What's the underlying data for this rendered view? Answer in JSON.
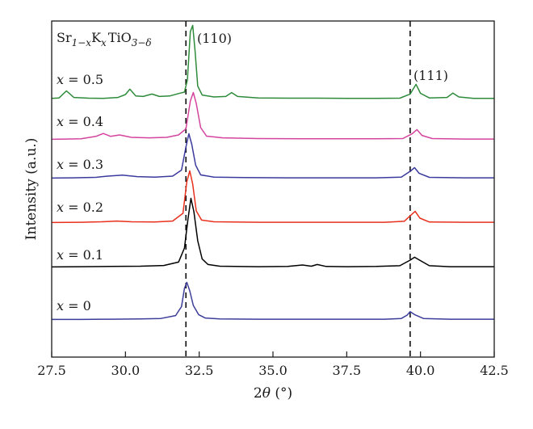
{
  "chart_data": {
    "type": "line",
    "xlabel": "2θ (°)",
    "ylabel": "Intensity (a.u.)",
    "xlim": [
      27.5,
      42.5
    ],
    "x_ticks": [
      "27.5",
      "30.0",
      "32.5",
      "35.0",
      "37.5",
      "40.0",
      "42.5"
    ],
    "grid": false,
    "title_annotation": {
      "base": "Sr",
      "sub1": "1−x",
      "mid": "K",
      "sub2": "x",
      "after": "TiO",
      "sub3": "3−δ"
    },
    "reference_lines": [
      {
        "x": 32.05,
        "label": "(110)"
      },
      {
        "x": 39.65,
        "label": "(111)"
      }
    ],
    "peaks": {
      "hkl110": "(110)",
      "hkl111": "(111)"
    },
    "series": [
      {
        "name": "x = 0.5",
        "color": "#2e8b3a",
        "points": [
          [
            27.5,
            0.04
          ],
          [
            27.75,
            0.06
          ],
          [
            28.0,
            0.35
          ],
          [
            28.25,
            0.08
          ],
          [
            28.75,
            0.05
          ],
          [
            29.25,
            0.04
          ],
          [
            29.75,
            0.08
          ],
          [
            30.0,
            0.2
          ],
          [
            30.15,
            0.42
          ],
          [
            30.35,
            0.14
          ],
          [
            30.6,
            0.12
          ],
          [
            30.9,
            0.22
          ],
          [
            31.15,
            0.12
          ],
          [
            31.5,
            0.14
          ],
          [
            31.8,
            0.24
          ],
          [
            32.0,
            0.3
          ],
          [
            32.1,
            0.8
          ],
          [
            32.2,
            2.8
          ],
          [
            32.28,
            3.05
          ],
          [
            32.36,
            2.0
          ],
          [
            32.45,
            0.55
          ],
          [
            32.6,
            0.18
          ],
          [
            33.0,
            0.1
          ],
          [
            33.4,
            0.12
          ],
          [
            33.6,
            0.28
          ],
          [
            33.8,
            0.12
          ],
          [
            34.5,
            0.06
          ],
          [
            35.5,
            0.05
          ],
          [
            36.5,
            0.05
          ],
          [
            37.5,
            0.04
          ],
          [
            38.5,
            0.04
          ],
          [
            39.3,
            0.05
          ],
          [
            39.65,
            0.22
          ],
          [
            39.85,
            0.62
          ],
          [
            40.0,
            0.25
          ],
          [
            40.3,
            0.06
          ],
          [
            40.9,
            0.08
          ],
          [
            41.1,
            0.26
          ],
          [
            41.3,
            0.1
          ],
          [
            41.8,
            0.04
          ],
          [
            42.5,
            0.04
          ]
        ]
      },
      {
        "name": "x = 0.4",
        "color": "#d4449e",
        "points": [
          [
            27.5,
            0.02
          ],
          [
            28.0,
            0.03
          ],
          [
            28.5,
            0.04
          ],
          [
            29.0,
            0.14
          ],
          [
            29.25,
            0.26
          ],
          [
            29.5,
            0.14
          ],
          [
            29.8,
            0.2
          ],
          [
            30.2,
            0.1
          ],
          [
            30.8,
            0.08
          ],
          [
            31.4,
            0.1
          ],
          [
            31.8,
            0.2
          ],
          [
            32.05,
            0.45
          ],
          [
            32.2,
            1.6
          ],
          [
            32.3,
            1.95
          ],
          [
            32.4,
            1.5
          ],
          [
            32.55,
            0.5
          ],
          [
            32.75,
            0.15
          ],
          [
            33.3,
            0.08
          ],
          [
            34.5,
            0.05
          ],
          [
            36.0,
            0.04
          ],
          [
            37.5,
            0.04
          ],
          [
            38.5,
            0.04
          ],
          [
            39.4,
            0.05
          ],
          [
            39.72,
            0.25
          ],
          [
            39.88,
            0.42
          ],
          [
            40.05,
            0.18
          ],
          [
            40.4,
            0.05
          ],
          [
            41.5,
            0.03
          ],
          [
            42.5,
            0.03
          ]
        ]
      },
      {
        "name": "x = 0.3",
        "color": "#3b3a9e",
        "points": [
          [
            27.5,
            0.02
          ],
          [
            28.2,
            0.03
          ],
          [
            29.0,
            0.05
          ],
          [
            29.4,
            0.1
          ],
          [
            29.9,
            0.14
          ],
          [
            30.4,
            0.08
          ],
          [
            31.0,
            0.06
          ],
          [
            31.6,
            0.1
          ],
          [
            31.9,
            0.35
          ],
          [
            32.05,
            1.3
          ],
          [
            32.15,
            1.85
          ],
          [
            32.25,
            1.4
          ],
          [
            32.38,
            0.55
          ],
          [
            32.55,
            0.15
          ],
          [
            33.0,
            0.06
          ],
          [
            34.0,
            0.04
          ],
          [
            35.5,
            0.03
          ],
          [
            37.0,
            0.03
          ],
          [
            38.5,
            0.03
          ],
          [
            39.35,
            0.06
          ],
          [
            39.65,
            0.3
          ],
          [
            39.8,
            0.45
          ],
          [
            39.95,
            0.22
          ],
          [
            40.3,
            0.05
          ],
          [
            41.5,
            0.03
          ],
          [
            42.5,
            0.03
          ]
        ]
      },
      {
        "name": "x = 0.2",
        "color": "#e8301c",
        "points": [
          [
            27.5,
            0.02
          ],
          [
            28.5,
            0.03
          ],
          [
            29.2,
            0.05
          ],
          [
            29.7,
            0.08
          ],
          [
            30.2,
            0.05
          ],
          [
            31.0,
            0.04
          ],
          [
            31.6,
            0.08
          ],
          [
            31.95,
            0.4
          ],
          [
            32.08,
            1.7
          ],
          [
            32.18,
            2.15
          ],
          [
            32.28,
            1.6
          ],
          [
            32.4,
            0.5
          ],
          [
            32.58,
            0.12
          ],
          [
            33.0,
            0.05
          ],
          [
            34.5,
            0.03
          ],
          [
            36.0,
            0.03
          ],
          [
            37.5,
            0.03
          ],
          [
            38.8,
            0.03
          ],
          [
            39.45,
            0.07
          ],
          [
            39.7,
            0.35
          ],
          [
            39.82,
            0.48
          ],
          [
            39.98,
            0.2
          ],
          [
            40.3,
            0.04
          ],
          [
            41.5,
            0.03
          ],
          [
            42.5,
            0.03
          ]
        ]
      },
      {
        "name": "x = 0.1",
        "color": "#000000",
        "points": [
          [
            27.5,
            0.02
          ],
          [
            28.5,
            0.03
          ],
          [
            29.5,
            0.04
          ],
          [
            30.5,
            0.05
          ],
          [
            31.3,
            0.08
          ],
          [
            31.8,
            0.22
          ],
          [
            32.0,
            0.8
          ],
          [
            32.12,
            2.0
          ],
          [
            32.22,
            2.85
          ],
          [
            32.32,
            2.3
          ],
          [
            32.45,
            1.1
          ],
          [
            32.6,
            0.35
          ],
          [
            32.8,
            0.12
          ],
          [
            33.2,
            0.05
          ],
          [
            34.5,
            0.03
          ],
          [
            35.5,
            0.04
          ],
          [
            36.0,
            0.1
          ],
          [
            36.3,
            0.05
          ],
          [
            36.5,
            0.12
          ],
          [
            36.8,
            0.04
          ],
          [
            37.5,
            0.03
          ],
          [
            38.5,
            0.04
          ],
          [
            39.3,
            0.07
          ],
          [
            39.65,
            0.3
          ],
          [
            39.8,
            0.42
          ],
          [
            40.0,
            0.28
          ],
          [
            40.3,
            0.07
          ],
          [
            41.0,
            0.03
          ],
          [
            42.5,
            0.03
          ]
        ]
      },
      {
        "name": "x = 0",
        "color": "#3c3c9a",
        "points": [
          [
            27.5,
            0.02
          ],
          [
            28.5,
            0.02
          ],
          [
            29.5,
            0.03
          ],
          [
            30.5,
            0.04
          ],
          [
            31.2,
            0.06
          ],
          [
            31.7,
            0.18
          ],
          [
            31.9,
            0.55
          ],
          [
            32.0,
            1.3
          ],
          [
            32.08,
            1.55
          ],
          [
            32.18,
            1.2
          ],
          [
            32.3,
            0.6
          ],
          [
            32.48,
            0.22
          ],
          [
            32.7,
            0.08
          ],
          [
            33.2,
            0.04
          ],
          [
            34.5,
            0.03
          ],
          [
            36.0,
            0.03
          ],
          [
            37.5,
            0.03
          ],
          [
            38.8,
            0.03
          ],
          [
            39.35,
            0.06
          ],
          [
            39.55,
            0.2
          ],
          [
            39.65,
            0.34
          ],
          [
            39.8,
            0.22
          ],
          [
            40.1,
            0.06
          ],
          [
            41.0,
            0.03
          ],
          [
            42.5,
            0.03
          ]
        ]
      }
    ]
  }
}
